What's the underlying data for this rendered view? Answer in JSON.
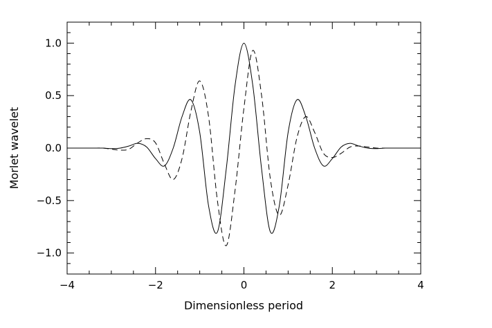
{
  "chart_data": {
    "type": "line",
    "title": "",
    "xlabel": "Dimensionless period",
    "ylabel": "Morlet wavelet",
    "xlim": [
      -4,
      4
    ],
    "ylim": [
      -1.2,
      1.2
    ],
    "x_ticks": [
      -4,
      -2,
      0,
      2,
      4
    ],
    "x_tick_labels": [
      "−4",
      "−2",
      "0",
      "2",
      "4"
    ],
    "y_ticks": [
      -1.0,
      -0.5,
      0.0,
      0.5,
      1.0
    ],
    "y_tick_labels": [
      "−1.0",
      "−0.5",
      "0.0",
      "0.5",
      "1.0"
    ],
    "grid": false,
    "legend": "none",
    "series": [
      {
        "line_style": "solid",
        "color": "#000000",
        "x": [
          -4.0,
          -3.8,
          -3.6,
          -3.4,
          -3.2,
          -3.0,
          -2.8,
          -2.6,
          -2.4,
          -2.2,
          -2.0,
          -1.8,
          -1.6,
          -1.4,
          -1.2,
          -1.0,
          -0.8,
          -0.6,
          -0.4,
          -0.2,
          0.0,
          0.2,
          0.4,
          0.6,
          0.8,
          1.0,
          1.2,
          1.4,
          1.6,
          1.8,
          2.0,
          2.2,
          2.4,
          2.6,
          2.8,
          3.0,
          3.2,
          3.4,
          3.6,
          3.8,
          4.0
        ],
        "y": [
          0.0,
          0.0,
          0.0,
          0.0,
          0.0,
          -0.005,
          0.0,
          0.02,
          0.045,
          0.01,
          -0.1,
          -0.17,
          0.0,
          0.3,
          0.46,
          0.15,
          -0.55,
          -0.8,
          -0.2,
          0.6,
          1.0,
          0.6,
          -0.2,
          -0.8,
          -0.55,
          0.15,
          0.46,
          0.3,
          0.0,
          -0.17,
          -0.1,
          0.01,
          0.045,
          0.02,
          0.0,
          -0.005,
          0.0,
          0.0,
          0.0,
          0.0,
          0.0
        ]
      },
      {
        "line_style": "dashed",
        "color": "#000000",
        "x": [
          -4.0,
          -3.8,
          -3.6,
          -3.4,
          -3.2,
          -3.0,
          -2.8,
          -2.6,
          -2.4,
          -2.2,
          -2.0,
          -1.8,
          -1.6,
          -1.4,
          -1.2,
          -1.0,
          -0.8,
          -0.6,
          -0.4,
          -0.2,
          0.0,
          0.2,
          0.4,
          0.6,
          0.8,
          1.0,
          1.2,
          1.4,
          1.6,
          1.8,
          2.0,
          2.2,
          2.4,
          2.6,
          2.8,
          3.0,
          3.2,
          3.4,
          3.6,
          3.8,
          4.0
        ],
        "y": [
          0.0,
          0.0,
          0.0,
          0.0,
          0.0,
          -0.01,
          -0.02,
          -0.01,
          0.05,
          0.09,
          0.05,
          -0.15,
          -0.3,
          -0.1,
          0.35,
          0.64,
          0.3,
          -0.5,
          -0.93,
          -0.4,
          0.38,
          0.93,
          0.5,
          -0.3,
          -0.64,
          -0.35,
          0.1,
          0.3,
          0.15,
          -0.05,
          -0.09,
          -0.05,
          0.01,
          0.02,
          0.01,
          0.0,
          0.0,
          0.0,
          0.0,
          0.0,
          0.0
        ]
      }
    ]
  }
}
